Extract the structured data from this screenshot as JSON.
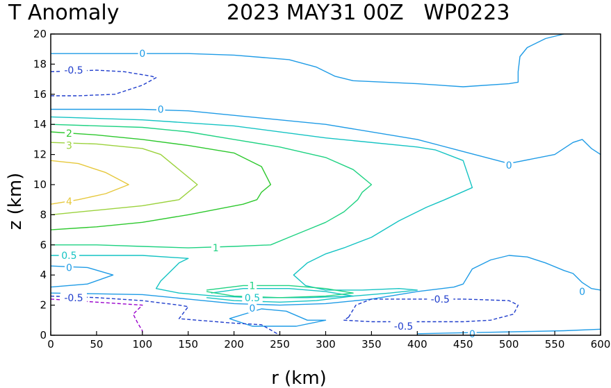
{
  "chart_data": {
    "type": "contour",
    "title_left": "T Anomaly",
    "title_right": "2023 MAY31 00Z   WP0223",
    "xlabel": "r (km)",
    "ylabel": "z (km)",
    "xlim": [
      0,
      600
    ],
    "ylim": [
      0,
      20
    ],
    "x_ticks": [
      0,
      50,
      100,
      150,
      200,
      250,
      300,
      350,
      400,
      450,
      500,
      550,
      600
    ],
    "y_ticks": [
      0,
      2,
      4,
      6,
      8,
      10,
      12,
      14,
      16,
      18,
      20
    ],
    "levels": [
      {
        "value": -1,
        "color": "#9900cc",
        "dashed": true
      },
      {
        "value": -0.5,
        "color": "#1e3ccc",
        "dashed": true
      },
      {
        "value": 0,
        "color": "#1e9be6",
        "dashed": false
      },
      {
        "value": 0.5,
        "color": "#14c3c3",
        "dashed": false
      },
      {
        "value": 1,
        "color": "#1ed282",
        "dashed": false
      },
      {
        "value": 2,
        "color": "#2dc82d",
        "dashed": false
      },
      {
        "value": 3,
        "color": "#9bd23c",
        "dashed": false
      },
      {
        "value": 4,
        "color": "#e6c83c",
        "dashed": false
      }
    ],
    "contours": [
      {
        "level": 0,
        "points": [
          [
            0,
            18.7
          ],
          [
            100,
            18.7
          ],
          [
            150,
            18.7
          ],
          [
            200,
            18.6
          ],
          [
            260,
            18.3
          ],
          [
            290,
            17.8
          ],
          [
            310,
            17.2
          ],
          [
            330,
            16.9
          ],
          [
            400,
            16.7
          ],
          [
            450,
            16.5
          ],
          [
            500,
            16.7
          ],
          [
            510,
            16.8
          ],
          [
            510,
            17.5
          ],
          [
            512,
            18.5
          ],
          [
            520,
            19.1
          ],
          [
            540,
            19.7
          ],
          [
            560,
            20.0
          ]
        ]
      },
      {
        "level": 0,
        "points": [
          [
            0,
            15.0
          ],
          [
            100,
            15.0
          ],
          [
            150,
            14.9
          ],
          [
            200,
            14.6
          ],
          [
            300,
            14.0
          ],
          [
            400,
            13.0
          ],
          [
            450,
            12.2
          ],
          [
            500,
            11.4
          ],
          [
            550,
            12.0
          ],
          [
            570,
            12.8
          ],
          [
            580,
            13.0
          ],
          [
            590,
            12.4
          ],
          [
            600,
            12.0
          ]
        ]
      },
      {
        "level": 0,
        "points": [
          [
            0,
            4.6
          ],
          [
            40,
            4.5
          ],
          [
            68,
            4.0
          ],
          [
            40,
            3.4
          ],
          [
            0,
            3.2
          ]
        ]
      },
      {
        "level": 0,
        "points": [
          [
            0,
            2.8
          ],
          [
            100,
            2.7
          ],
          [
            150,
            2.4
          ],
          [
            200,
            2.1
          ],
          [
            250,
            2.0
          ],
          [
            300,
            2.1
          ],
          [
            350,
            2.4
          ],
          [
            400,
            2.9
          ],
          [
            440,
            3.2
          ],
          [
            450,
            3.4
          ],
          [
            460,
            4.4
          ],
          [
            480,
            5.0
          ],
          [
            500,
            5.3
          ],
          [
            520,
            5.2
          ],
          [
            540,
            4.8
          ],
          [
            560,
            4.3
          ],
          [
            570,
            4.1
          ],
          [
            580,
            3.5
          ],
          [
            590,
            3.1
          ],
          [
            600,
            3.0
          ]
        ]
      },
      {
        "level": 0,
        "points": [
          [
            195,
            1.1
          ],
          [
            230,
            1.75
          ],
          [
            257,
            1.6
          ],
          [
            280,
            1.0
          ],
          [
            300,
            1.0
          ],
          [
            268,
            0.6
          ],
          [
            220,
            0.6
          ],
          [
            195,
            1.1
          ]
        ]
      },
      {
        "level": 0,
        "points": [
          [
            400,
            0.1
          ],
          [
            480,
            0.2
          ],
          [
            560,
            0.3
          ],
          [
            600,
            0.4
          ]
        ]
      },
      {
        "level": 0.5,
        "points": [
          [
            0,
            14.5
          ],
          [
            100,
            14.3
          ],
          [
            200,
            13.9
          ],
          [
            300,
            13.1
          ],
          [
            400,
            12.5
          ],
          [
            420,
            12.3
          ],
          [
            450,
            11.6
          ],
          [
            460,
            9.8
          ],
          [
            430,
            9.0
          ],
          [
            410,
            8.5
          ],
          [
            380,
            7.6
          ],
          [
            350,
            6.5
          ],
          [
            320,
            5.8
          ],
          [
            300,
            5.4
          ],
          [
            280,
            4.8
          ],
          [
            265,
            4.0
          ],
          [
            278,
            3.3
          ],
          [
            300,
            3.0
          ],
          [
            340,
            3.0
          ],
          [
            380,
            3.1
          ],
          [
            400,
            3.0
          ],
          [
            370,
            2.8
          ],
          [
            330,
            2.6
          ],
          [
            280,
            2.5
          ],
          [
            220,
            2.5
          ],
          [
            180,
            2.6
          ],
          [
            140,
            2.8
          ],
          [
            115,
            3.1
          ],
          [
            120,
            3.6
          ],
          [
            130,
            4.2
          ],
          [
            140,
            4.8
          ],
          [
            150,
            5.1
          ],
          [
            100,
            5.3
          ],
          [
            50,
            5.3
          ],
          [
            0,
            5.3
          ]
        ]
      },
      {
        "level": 0.5,
        "points": [
          [
            175,
            2.8
          ],
          [
            210,
            3.1
          ],
          [
            260,
            3.1
          ],
          [
            300,
            2.9
          ],
          [
            330,
            2.6
          ],
          [
            290,
            2.3
          ],
          [
            250,
            2.2
          ],
          [
            200,
            2.3
          ],
          [
            170,
            2.5
          ]
        ]
      },
      {
        "level": 1,
        "points": [
          [
            0,
            14.0
          ],
          [
            100,
            13.8
          ],
          [
            150,
            13.5
          ],
          [
            200,
            13.0
          ],
          [
            250,
            12.5
          ],
          [
            300,
            11.8
          ],
          [
            330,
            11.0
          ],
          [
            350,
            10.0
          ],
          [
            340,
            9.5
          ],
          [
            335,
            9.0
          ],
          [
            320,
            8.2
          ],
          [
            300,
            7.5
          ],
          [
            280,
            7.0
          ],
          [
            260,
            6.5
          ],
          [
            240,
            6.0
          ],
          [
            200,
            5.9
          ],
          [
            150,
            5.8
          ],
          [
            100,
            5.9
          ],
          [
            50,
            6.0
          ],
          [
            0,
            6.0
          ]
        ]
      },
      {
        "level": 1,
        "points": [
          [
            170,
            3.0
          ],
          [
            210,
            3.3
          ],
          [
            260,
            3.3
          ],
          [
            300,
            3.1
          ],
          [
            330,
            2.8
          ],
          [
            300,
            2.6
          ],
          [
            250,
            2.5
          ],
          [
            200,
            2.6
          ],
          [
            170,
            2.9
          ]
        ]
      },
      {
        "level": 2,
        "points": [
          [
            0,
            13.5
          ],
          [
            50,
            13.3
          ],
          [
            100,
            13.0
          ],
          [
            150,
            12.6
          ],
          [
            200,
            12.1
          ],
          [
            230,
            11.2
          ],
          [
            240,
            10.0
          ],
          [
            230,
            9.5
          ],
          [
            225,
            9.0
          ],
          [
            210,
            8.7
          ],
          [
            150,
            8.0
          ],
          [
            100,
            7.5
          ],
          [
            50,
            7.2
          ],
          [
            0,
            7.0
          ]
        ]
      },
      {
        "level": 3,
        "points": [
          [
            0,
            12.8
          ],
          [
            50,
            12.7
          ],
          [
            100,
            12.4
          ],
          [
            120,
            12.0
          ],
          [
            160,
            10.0
          ],
          [
            140,
            9.0
          ],
          [
            100,
            8.6
          ],
          [
            50,
            8.3
          ],
          [
            0,
            8.0
          ]
        ]
      },
      {
        "level": 4,
        "points": [
          [
            0,
            11.6
          ],
          [
            30,
            11.4
          ],
          [
            60,
            10.8
          ],
          [
            85,
            10.0
          ],
          [
            60,
            9.4
          ],
          [
            30,
            9.0
          ],
          [
            0,
            8.7
          ]
        ]
      },
      {
        "level": -0.5,
        "points": [
          [
            0,
            17.5
          ],
          [
            50,
            17.6
          ],
          [
            80,
            17.5
          ],
          [
            110,
            17.2
          ],
          [
            115,
            17.1
          ],
          [
            100,
            16.6
          ],
          [
            70,
            16.0
          ],
          [
            30,
            15.9
          ],
          [
            0,
            15.9
          ]
        ]
      },
      {
        "level": -0.5,
        "points": [
          [
            0,
            2.6
          ],
          [
            50,
            2.5
          ],
          [
            100,
            2.3
          ],
          [
            140,
            2.0
          ],
          [
            150,
            1.9
          ],
          [
            140,
            1.1
          ],
          [
            160,
            1.0
          ],
          [
            200,
            0.8
          ],
          [
            230,
            0.7
          ],
          [
            250,
            0.0
          ]
        ]
      },
      {
        "level": -0.5,
        "points": [
          [
            325,
            1.2
          ],
          [
            333,
            2.0
          ],
          [
            350,
            2.4
          ],
          [
            400,
            2.4
          ],
          [
            450,
            2.4
          ],
          [
            500,
            2.3
          ],
          [
            510,
            2.0
          ],
          [
            505,
            1.4
          ],
          [
            480,
            1.0
          ],
          [
            450,
            0.9
          ],
          [
            400,
            0.9
          ],
          [
            350,
            0.9
          ],
          [
            320,
            1.0
          ],
          [
            325,
            1.2
          ]
        ]
      },
      {
        "level": -1,
        "points": [
          [
            0,
            2.4
          ],
          [
            50,
            2.2
          ],
          [
            100,
            2.0
          ],
          [
            90,
            1.4
          ],
          [
            95,
            0.8
          ],
          [
            100,
            0.3
          ],
          [
            100,
            0.0
          ]
        ]
      }
    ],
    "contour_labels": [
      {
        "text": "0",
        "x": 100,
        "y": 18.7,
        "level": 0
      },
      {
        "text": "-0.5",
        "x": 25,
        "y": 17.6,
        "level": -0.5
      },
      {
        "text": "0",
        "x": 120,
        "y": 15.0,
        "level": 0
      },
      {
        "text": "2",
        "x": 20,
        "y": 13.4,
        "level": 2
      },
      {
        "text": "3",
        "x": 20,
        "y": 12.6,
        "level": 3
      },
      {
        "text": "0",
        "x": 500,
        "y": 11.3,
        "level": 0
      },
      {
        "text": "4",
        "x": 20,
        "y": 8.9,
        "level": 4
      },
      {
        "text": "1",
        "x": 180,
        "y": 5.8,
        "level": 1
      },
      {
        "text": "0.5",
        "x": 20,
        "y": 5.3,
        "level": 0.5
      },
      {
        "text": "0",
        "x": 20,
        "y": 4.5,
        "level": 0
      },
      {
        "text": "1",
        "x": 220,
        "y": 3.3,
        "level": 1
      },
      {
        "text": "0.5",
        "x": 220,
        "y": 2.5,
        "level": 0.5
      },
      {
        "text": "-0.5",
        "x": 25,
        "y": 2.5,
        "level": -0.5
      },
      {
        "text": "0",
        "x": 220,
        "y": 1.8,
        "level": 0
      },
      {
        "text": "-0.5",
        "x": 425,
        "y": 2.4,
        "level": -0.5
      },
      {
        "text": "0",
        "x": 580,
        "y": 2.9,
        "level": 0
      },
      {
        "text": "-0.5",
        "x": 385,
        "y": 0.6,
        "level": -0.5
      },
      {
        "text": "0",
        "x": 460,
        "y": 0.1,
        "level": 0
      }
    ]
  }
}
